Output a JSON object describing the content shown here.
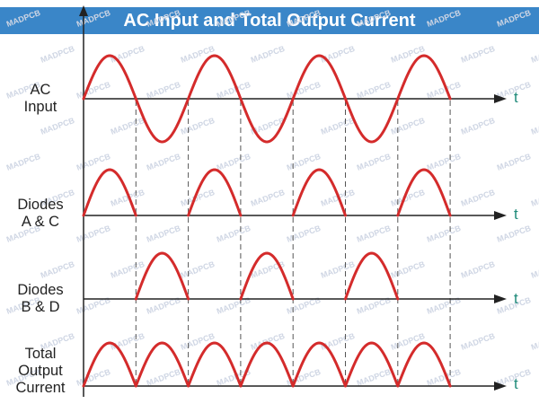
{
  "title": "AC Input and Total Output Current",
  "watermark": "MADPCB",
  "axis_symbol": "t",
  "rows": [
    {
      "label_lines": [
        "AC",
        "Input"
      ],
      "waveform": "full-sine"
    },
    {
      "label_lines": [
        "Diodes",
        "A & C"
      ],
      "waveform": "positive-half-cycles"
    },
    {
      "label_lines": [
        "Diodes",
        "B & D"
      ],
      "waveform": "negative-half-cycles-rectified"
    },
    {
      "label_lines": [
        "Total",
        "Output",
        "Current"
      ],
      "waveform": "full-wave-rectified"
    }
  ],
  "colors": {
    "banner": "#3a86c8",
    "waveform": "#d42b2b",
    "axis": "#222222",
    "t_label": "#1f8a7a",
    "dashed_guides": "#555555"
  },
  "half_cycles_shown": 7
}
